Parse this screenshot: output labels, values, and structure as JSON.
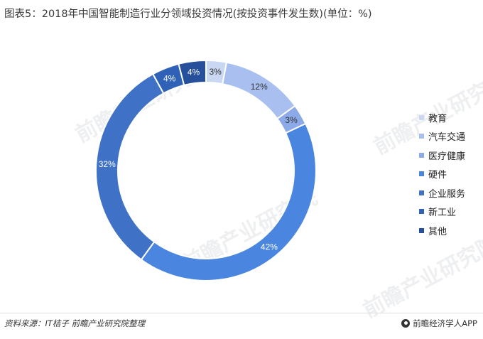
{
  "title": "图表5：2018年中国智能制造行业分领域投资情况(按投资事件发生数)(单位：%)",
  "chart_data": {
    "type": "pie",
    "variant": "donut",
    "categories": [
      "教育",
      "汽车交通",
      "医疗健康",
      "硬件",
      "企业服务",
      "新工业",
      "其他"
    ],
    "values": [
      3,
      12,
      3,
      42,
      32,
      4,
      4
    ],
    "labels": [
      "3%",
      "12%",
      "3%",
      "42%",
      "32%",
      "4%",
      "4%"
    ],
    "colors": [
      "#c9d7f3",
      "#a8bff0",
      "#8ca9e8",
      "#4a86df",
      "#3f72c6",
      "#2f62b7",
      "#264f9c"
    ],
    "legend_position": "right"
  },
  "footer": {
    "source": "资料来源：IT桔子 前瞻产业研究院整理",
    "brand": "前瞻经济学人APP"
  },
  "watermark": "前瞻产业研究院"
}
